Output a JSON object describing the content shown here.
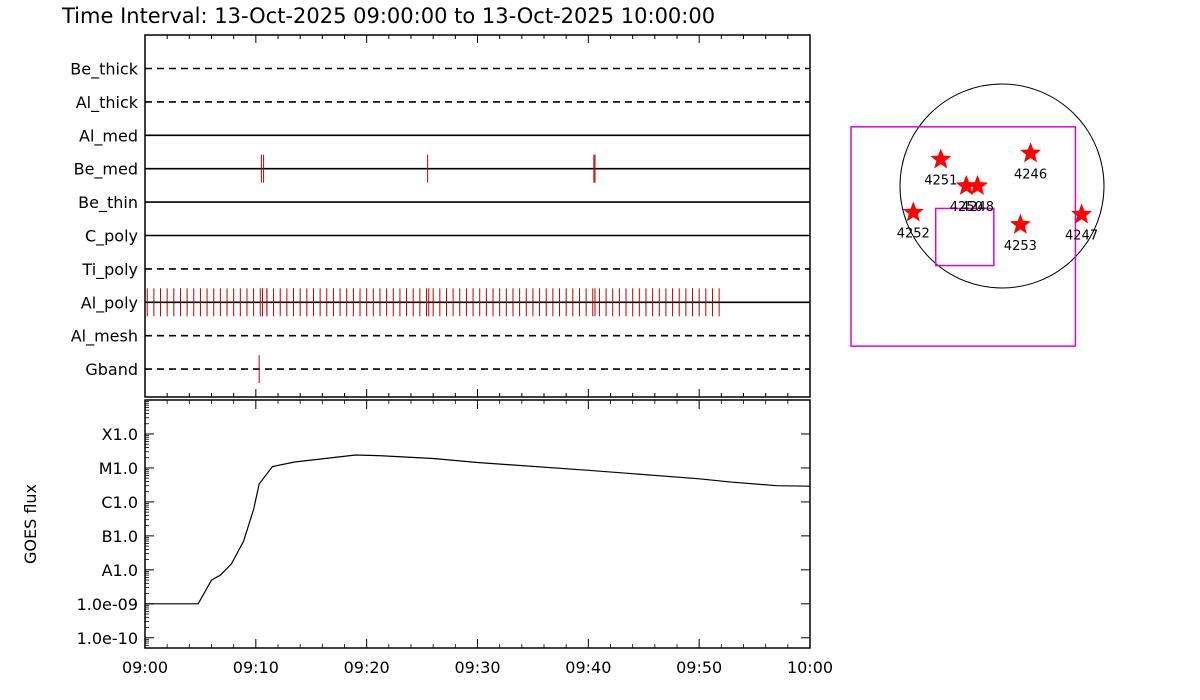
{
  "title": "Time Interval: 13-Oct-2025 09:00:00 to 13-Oct-2025 10:00:00",
  "colors": {
    "axes": "#000000",
    "events": "#c00000",
    "stars": "#ff0000",
    "fov_box": "#e000e0",
    "disk": "#000000"
  },
  "chart_data": [
    {
      "type": "timeline",
      "name": "filter-wheel-events",
      "x_range": [
        "09:00",
        "10:00"
      ],
      "rows": [
        {
          "label": "Be_thick",
          "line_style": "dashed",
          "events": []
        },
        {
          "label": "Al_thick",
          "line_style": "dashed",
          "events": []
        },
        {
          "label": "Al_med",
          "line_style": "solid",
          "events": []
        },
        {
          "label": "Be_med",
          "line_style": "solid",
          "events": [
            10.5,
            10.7,
            25.5,
            40.5,
            40.6
          ]
        },
        {
          "label": "Be_thin",
          "line_style": "solid",
          "events": []
        },
        {
          "label": "C_poly",
          "line_style": "solid",
          "events": []
        },
        {
          "label": "Ti_poly",
          "line_style": "dashed",
          "events": []
        },
        {
          "label": "Al_poly",
          "line_style": "solid",
          "events_regular": {
            "start": 0.2,
            "end": 52,
            "step": 0.6
          },
          "events": [
            10.6,
            11.0,
            25.6,
            40.6
          ]
        },
        {
          "label": "Al_mesh",
          "line_style": "dashed",
          "events": []
        },
        {
          "label": "Gband",
          "line_style": "dashed",
          "events": [
            10.3
          ]
        }
      ]
    },
    {
      "type": "line",
      "name": "goes-flux",
      "ylabel": "GOES flux",
      "y_scale": "log",
      "ylim": [
        5e-11,
        0.001
      ],
      "y_ticks": [
        {
          "value": 1e-10,
          "label": "1.0e-10"
        },
        {
          "value": 1e-09,
          "label": "1.0e-09"
        },
        {
          "value": 1e-08,
          "label": "A1.0"
        },
        {
          "value": 1e-07,
          "label": "B1.0"
        },
        {
          "value": 1e-06,
          "label": "C1.0"
        },
        {
          "value": 1e-05,
          "label": "M1.0"
        },
        {
          "value": 0.0001,
          "label": "X1.0"
        }
      ],
      "x_ticks": [
        "09:00",
        "09:10",
        "09:20",
        "09:30",
        "09:40",
        "09:50",
        "10:00"
      ],
      "x_minutes": [
        0,
        4.8,
        6.0,
        6.8,
        7.8,
        8.9,
        9.8,
        10.3,
        11.5,
        13.5,
        19.0,
        21.0,
        26.0,
        30.0,
        40.0,
        50.0,
        53.0,
        57.0,
        60.0
      ],
      "y_values": [
        1e-09,
        1e-09,
        5e-09,
        7e-09,
        1.5e-08,
        7e-08,
        6e-07,
        3.4e-06,
        1.1e-05,
        1.5e-05,
        2.4e-05,
        2.3e-05,
        1.9e-05,
        1.45e-05,
        8.5e-06,
        4.8e-06,
        3.8e-06,
        3e-06,
        2.9e-06
      ]
    },
    {
      "type": "scatter",
      "name": "active-region-map",
      "disk": {
        "cx": 0,
        "cy": 0,
        "r": 1
      },
      "fov_outer": {
        "x0": -1.48,
        "x1": 0.72,
        "y0": -1.57,
        "y1": 0.58
      },
      "fov_inner": {
        "x0": -0.65,
        "x1": -0.08,
        "y0": -0.78,
        "y1": -0.22
      },
      "regions": [
        {
          "label": "4251",
          "x": -0.6,
          "y": 0.26
        },
        {
          "label": "4246",
          "x": 0.28,
          "y": 0.32
        },
        {
          "label": "4250",
          "x": -0.35,
          "y": 0.0
        },
        {
          "label": "4248",
          "x": -0.24,
          "y": 0.0
        },
        {
          "label": "4252",
          "x": -0.87,
          "y": -0.26
        },
        {
          "label": "4253",
          "x": 0.18,
          "y": -0.38
        },
        {
          "label": "4247",
          "x": 0.78,
          "y": -0.28
        }
      ]
    }
  ]
}
